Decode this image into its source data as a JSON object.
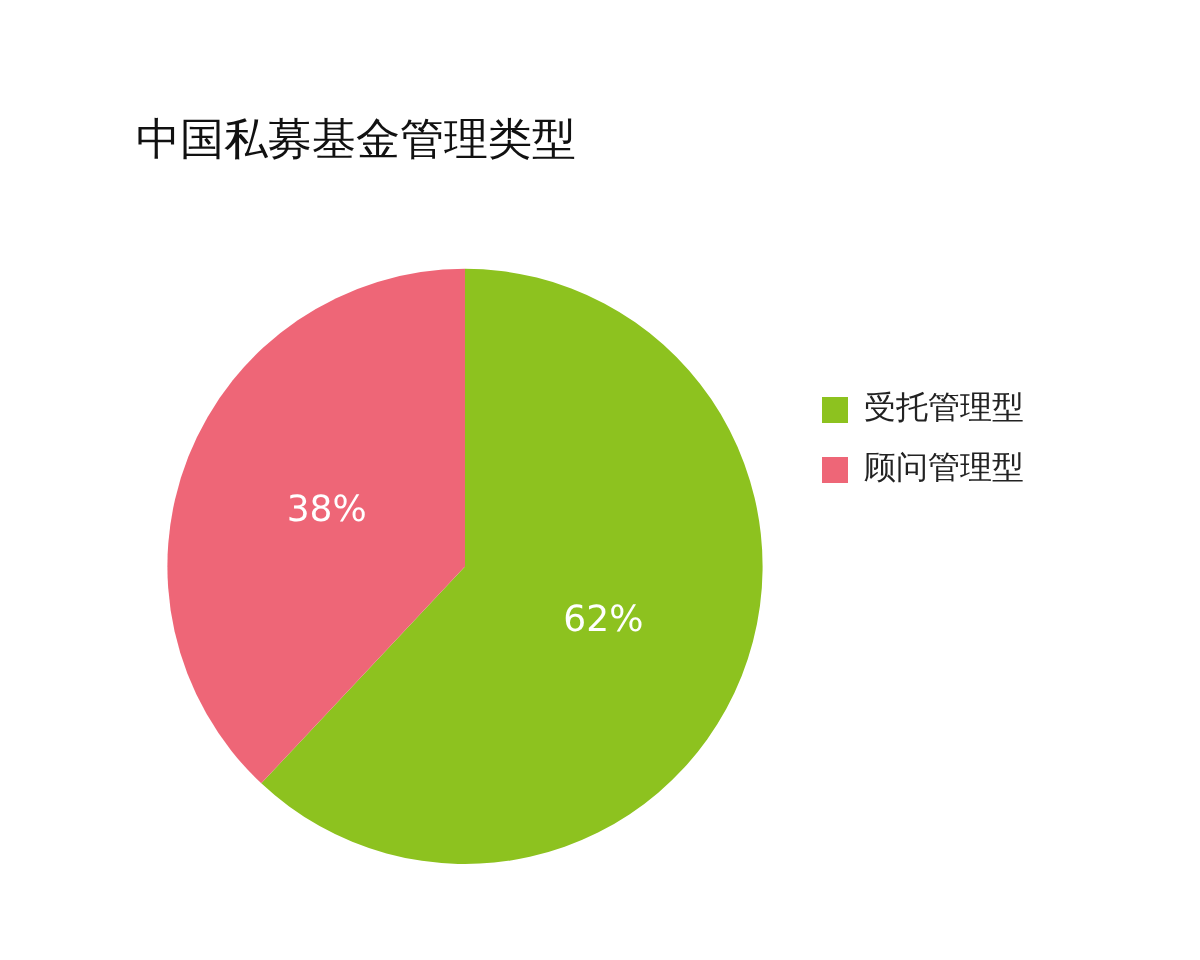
{
  "chart_data": {
    "type": "pie",
    "title": "中国私募基金管理类型",
    "categories": [
      "受托管理型",
      "顾问管理型"
    ],
    "values": [
      62,
      38
    ],
    "colors": [
      "#8dc21f",
      "#ee6677"
    ],
    "legend": "right",
    "value_labels": [
      "62%",
      "38%"
    ]
  }
}
